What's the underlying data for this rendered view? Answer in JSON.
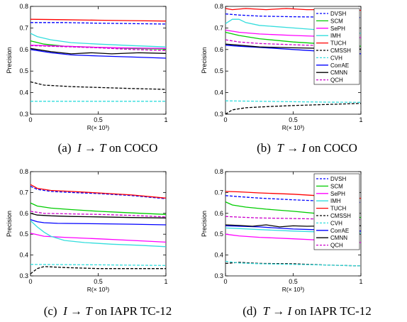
{
  "chart_data": [
    {
      "type": "line",
      "caption": {
        "label": "(a)",
        "query": "I",
        "target": "T",
        "dataset": "on COCO"
      },
      "xlabel": "R(× 10³)",
      "ylabel": "Precision",
      "xlim": [
        0,
        1
      ],
      "ylim": [
        0.3,
        0.8
      ],
      "xticks": [
        "0",
        "0.5",
        "1"
      ],
      "yticks": [
        "0.3",
        "0.4",
        "0.5",
        "0.6",
        "0.7",
        "0.8"
      ],
      "series": [
        {
          "name": "DVSH",
          "color": "#0000ff",
          "dash": "dashed",
          "x": [
            0,
            0.25,
            0.5,
            0.75,
            1
          ],
          "y": [
            0.725,
            0.725,
            0.722,
            0.72,
            0.718
          ]
        },
        {
          "name": "SCM",
          "color": "#00cc00",
          "dash": "solid",
          "x": [
            0,
            0.1,
            0.25,
            0.5,
            0.75,
            1
          ],
          "y": [
            0.64,
            0.625,
            0.615,
            0.61,
            0.605,
            0.602
          ]
        },
        {
          "name": "SePH",
          "color": "#ff00ff",
          "dash": "solid",
          "x": [
            0,
            0.25,
            0.5,
            0.75,
            1
          ],
          "y": [
            0.62,
            0.615,
            0.61,
            0.607,
            0.605
          ]
        },
        {
          "name": "IMH",
          "color": "#33dddd",
          "dash": "solid",
          "x": [
            0,
            0.05,
            0.15,
            0.3,
            0.5,
            0.75,
            1
          ],
          "y": [
            0.675,
            0.66,
            0.645,
            0.632,
            0.625,
            0.618,
            0.612
          ]
        },
        {
          "name": "TUCH",
          "color": "#ff0000",
          "dash": "solid",
          "x": [
            0,
            0.25,
            0.5,
            0.75,
            1
          ],
          "y": [
            0.74,
            0.738,
            0.736,
            0.734,
            0.732
          ]
        },
        {
          "name": "CMSSH",
          "color": "#000000",
          "dash": "dashed",
          "x": [
            0,
            0.1,
            0.3,
            0.5,
            0.75,
            1
          ],
          "y": [
            0.45,
            0.435,
            0.428,
            0.424,
            0.419,
            0.415
          ]
        },
        {
          "name": "CVH",
          "color": "#33dddd",
          "dash": "dashed",
          "x": [
            0,
            0.5,
            1
          ],
          "y": [
            0.36,
            0.36,
            0.36
          ]
        },
        {
          "name": "CorrAE",
          "color": "#0000ff",
          "dash": "solid",
          "x": [
            0,
            0.15,
            0.3,
            0.5,
            0.75,
            1
          ],
          "y": [
            0.6,
            0.585,
            0.575,
            0.57,
            0.565,
            0.56
          ]
        },
        {
          "name": "CMNN",
          "color": "#000000",
          "dash": "solid",
          "x": [
            0,
            0.15,
            0.3,
            0.45,
            0.6,
            0.8,
            1
          ],
          "y": [
            0.605,
            0.59,
            0.58,
            0.585,
            0.58,
            0.585,
            0.582
          ]
        },
        {
          "name": "QCH",
          "color": "#cc00cc",
          "dash": "dashed",
          "x": [
            0,
            0.25,
            0.5,
            0.75,
            1
          ],
          "y": [
            0.618,
            0.613,
            0.608,
            0.6,
            0.595
          ]
        }
      ]
    },
    {
      "type": "line",
      "caption": {
        "label": "(b)",
        "query": "T",
        "target": "I",
        "dataset": "on COCO"
      },
      "xlabel": "R(× 10³)",
      "ylabel": "Precision",
      "xlim": [
        0,
        1
      ],
      "ylim": [
        0.3,
        0.8
      ],
      "xticks": [
        "0",
        "0.5",
        "1"
      ],
      "yticks": [
        "0.3",
        "0.4",
        "0.5",
        "0.6",
        "0.7",
        "0.8"
      ],
      "legend": "top-right",
      "series": [
        {
          "name": "DVSH",
          "color": "#0000ff",
          "dash": "dashed",
          "x": [
            0,
            0.1,
            0.25,
            0.5,
            0.75,
            1
          ],
          "y": [
            0.765,
            0.76,
            0.755,
            0.752,
            0.75,
            0.748
          ]
        },
        {
          "name": "SCM",
          "color": "#00cc00",
          "dash": "solid",
          "x": [
            0,
            0.1,
            0.25,
            0.5,
            0.75,
            1
          ],
          "y": [
            0.68,
            0.665,
            0.65,
            0.635,
            0.625,
            0.615
          ]
        },
        {
          "name": "SePH",
          "color": "#ff00ff",
          "dash": "solid",
          "x": [
            0,
            0.1,
            0.25,
            0.5,
            0.75,
            1
          ],
          "y": [
            0.69,
            0.68,
            0.672,
            0.665,
            0.66,
            0.655
          ]
        },
        {
          "name": "IMH",
          "color": "#33dddd",
          "dash": "solid",
          "x": [
            0,
            0.05,
            0.1,
            0.15,
            0.25,
            0.5,
            0.75,
            1
          ],
          "y": [
            0.72,
            0.74,
            0.74,
            0.725,
            0.712,
            0.7,
            0.688,
            0.675
          ]
        },
        {
          "name": "TUCH",
          "color": "#ff0000",
          "dash": "solid",
          "x": [
            0,
            0.05,
            0.15,
            0.3,
            0.45,
            0.6,
            0.8,
            1
          ],
          "y": [
            0.79,
            0.785,
            0.79,
            0.785,
            0.79,
            0.785,
            0.785,
            0.782
          ]
        },
        {
          "name": "CMSSH",
          "color": "#000000",
          "dash": "dashed",
          "x": [
            0,
            0.05,
            0.15,
            0.3,
            0.5,
            0.75,
            1
          ],
          "y": [
            0.3,
            0.32,
            0.33,
            0.335,
            0.34,
            0.345,
            0.35
          ]
        },
        {
          "name": "CVH",
          "color": "#33dddd",
          "dash": "dashed",
          "x": [
            0,
            0.25,
            0.5,
            0.75,
            1
          ],
          "y": [
            0.362,
            0.36,
            0.358,
            0.356,
            0.355
          ]
        },
        {
          "name": "CorrAE",
          "color": "#0000ff",
          "dash": "solid",
          "x": [
            0,
            0.1,
            0.25,
            0.5,
            0.75,
            1
          ],
          "y": [
            0.62,
            0.615,
            0.61,
            0.6,
            0.59,
            0.58
          ]
        },
        {
          "name": "CMNN",
          "color": "#000000",
          "dash": "solid",
          "x": [
            0,
            0.1,
            0.25,
            0.5,
            0.75,
            1
          ],
          "y": [
            0.625,
            0.62,
            0.612,
            0.608,
            0.605,
            0.602
          ]
        },
        {
          "name": "QCH",
          "color": "#cc00cc",
          "dash": "dashed",
          "x": [
            0,
            0.1,
            0.25,
            0.5,
            0.75,
            1
          ],
          "y": [
            0.645,
            0.635,
            0.628,
            0.622,
            0.617,
            0.612
          ]
        }
      ]
    },
    {
      "type": "line",
      "caption": {
        "label": "(c)",
        "query": "I",
        "target": "T",
        "dataset": "on IAPR TC-12"
      },
      "xlabel": "R(× 10³)",
      "ylabel": "Precision",
      "xlim": [
        0,
        1
      ],
      "ylim": [
        0.3,
        0.8
      ],
      "xticks": [
        "0",
        "0.5",
        "1"
      ],
      "yticks": [
        "0.3",
        "0.4",
        "0.5",
        "0.6",
        "0.7",
        "0.8"
      ],
      "series": [
        {
          "name": "DVSH",
          "color": "#0000ff",
          "dash": "dashed",
          "x": [
            0,
            0.05,
            0.15,
            0.3,
            0.5,
            0.75,
            1
          ],
          "y": [
            0.73,
            0.715,
            0.705,
            0.7,
            0.695,
            0.685,
            0.67
          ]
        },
        {
          "name": "SCM",
          "color": "#00cc00",
          "dash": "solid",
          "x": [
            0,
            0.05,
            0.15,
            0.3,
            0.5,
            0.75,
            1
          ],
          "y": [
            0.65,
            0.635,
            0.625,
            0.618,
            0.61,
            0.602,
            0.595
          ]
        },
        {
          "name": "SePH",
          "color": "#ff00ff",
          "dash": "solid",
          "x": [
            0,
            0.1,
            0.25,
            0.5,
            0.75,
            1
          ],
          "y": [
            0.505,
            0.49,
            0.485,
            0.478,
            0.47,
            0.462
          ]
        },
        {
          "name": "IMH",
          "color": "#33dddd",
          "dash": "solid",
          "x": [
            0,
            0.05,
            0.1,
            0.15,
            0.25,
            0.4,
            0.6,
            0.8,
            1
          ],
          "y": [
            0.565,
            0.535,
            0.51,
            0.49,
            0.47,
            0.46,
            0.452,
            0.447,
            0.44
          ]
        },
        {
          "name": "TUCH",
          "color": "#ff0000",
          "dash": "solid",
          "x": [
            0,
            0.05,
            0.15,
            0.3,
            0.5,
            0.75,
            1
          ],
          "y": [
            0.738,
            0.72,
            0.71,
            0.705,
            0.698,
            0.688,
            0.673
          ]
        },
        {
          "name": "CMSSH",
          "color": "#000000",
          "dash": "dashed",
          "x": [
            0,
            0.05,
            0.1,
            0.25,
            0.5,
            0.75,
            1
          ],
          "y": [
            0.31,
            0.335,
            0.345,
            0.34,
            0.335,
            0.335,
            0.335
          ]
        },
        {
          "name": "CVH",
          "color": "#33dddd",
          "dash": "dashed",
          "x": [
            0,
            0.5,
            1
          ],
          "y": [
            0.355,
            0.353,
            0.35
          ]
        },
        {
          "name": "CorrAE",
          "color": "#0000ff",
          "dash": "solid",
          "x": [
            0,
            0.05,
            0.1,
            0.2,
            0.5,
            0.75,
            1
          ],
          "y": [
            0.57,
            0.56,
            0.555,
            0.552,
            0.55,
            0.548,
            0.545
          ]
        },
        {
          "name": "CMNN",
          "color": "#000000",
          "dash": "solid",
          "x": [
            0,
            0.05,
            0.15,
            0.3,
            0.5,
            0.75,
            1
          ],
          "y": [
            0.6,
            0.592,
            0.588,
            0.585,
            0.583,
            0.58,
            0.578
          ]
        },
        {
          "name": "QCH",
          "color": "#cc00cc",
          "dash": "dashed",
          "x": [
            0,
            0.1,
            0.25,
            0.5,
            0.75,
            1
          ],
          "y": [
            0.61,
            0.6,
            0.598,
            0.595,
            0.59,
            0.583
          ]
        }
      ]
    },
    {
      "type": "line",
      "caption": {
        "label": "(d)",
        "query": "T",
        "target": "I",
        "dataset": "on IAPR TC-12"
      },
      "xlabel": "R(× 10³)",
      "ylabel": "Precision",
      "xlim": [
        0,
        1
      ],
      "ylim": [
        0.3,
        0.8
      ],
      "xticks": [
        "0",
        "0.5",
        "1"
      ],
      "yticks": [
        "0.3",
        "0.4",
        "0.5",
        "0.6",
        "0.7",
        "0.8"
      ],
      "legend": "top-right",
      "series": [
        {
          "name": "DVSH",
          "color": "#0000ff",
          "dash": "dashed",
          "x": [
            0,
            0.1,
            0.25,
            0.5,
            0.75,
            1
          ],
          "y": [
            0.685,
            0.68,
            0.673,
            0.665,
            0.658,
            0.652
          ]
        },
        {
          "name": "SCM",
          "color": "#00cc00",
          "dash": "solid",
          "x": [
            0,
            0.05,
            0.15,
            0.3,
            0.5,
            0.75,
            1
          ],
          "y": [
            0.655,
            0.64,
            0.63,
            0.62,
            0.61,
            0.595,
            0.58
          ]
        },
        {
          "name": "SePH",
          "color": "#ff00ff",
          "dash": "solid",
          "x": [
            0,
            0.1,
            0.25,
            0.5,
            0.75,
            1
          ],
          "y": [
            0.5,
            0.492,
            0.485,
            0.478,
            0.47,
            0.46
          ]
        },
        {
          "name": "IMH",
          "color": "#33dddd",
          "dash": "solid",
          "x": [
            0,
            0.25,
            0.5,
            0.75,
            1
          ],
          "y": [
            0.53,
            0.522,
            0.515,
            0.51,
            0.505
          ]
        },
        {
          "name": "TUCH",
          "color": "#ff0000",
          "dash": "solid",
          "x": [
            0,
            0.1,
            0.25,
            0.5,
            0.75,
            1
          ],
          "y": [
            0.705,
            0.703,
            0.698,
            0.692,
            0.682,
            0.672
          ]
        },
        {
          "name": "CMSSH",
          "color": "#000000",
          "dash": "dashed",
          "x": [
            0,
            0.1,
            0.25,
            0.5,
            0.75,
            1
          ],
          "y": [
            0.36,
            0.365,
            0.36,
            0.358,
            0.352,
            0.348
          ]
        },
        {
          "name": "CVH",
          "color": "#33dddd",
          "dash": "dashed",
          "x": [
            0,
            0.1,
            0.25,
            0.5,
            0.75,
            1
          ],
          "y": [
            0.37,
            0.362,
            0.358,
            0.355,
            0.352,
            0.348
          ]
        },
        {
          "name": "CorrAE",
          "color": "#0000ff",
          "dash": "solid",
          "x": [
            0,
            0.25,
            0.5,
            0.75,
            1
          ],
          "y": [
            0.54,
            0.535,
            0.525,
            0.52,
            0.515
          ]
        },
        {
          "name": "CMNN",
          "color": "#000000",
          "dash": "solid",
          "x": [
            0,
            0.1,
            0.2,
            0.3,
            0.4,
            0.5,
            0.6,
            0.8,
            1
          ],
          "y": [
            0.545,
            0.542,
            0.538,
            0.545,
            0.535,
            0.54,
            0.538,
            0.54,
            0.54
          ]
        },
        {
          "name": "QCH",
          "color": "#cc00cc",
          "dash": "dashed",
          "x": [
            0,
            0.1,
            0.25,
            0.5,
            0.75,
            1
          ],
          "y": [
            0.585,
            0.582,
            0.578,
            0.575,
            0.572,
            0.57
          ]
        }
      ]
    }
  ],
  "colors": {
    "axis": "#000000",
    "background": "#ffffff"
  }
}
